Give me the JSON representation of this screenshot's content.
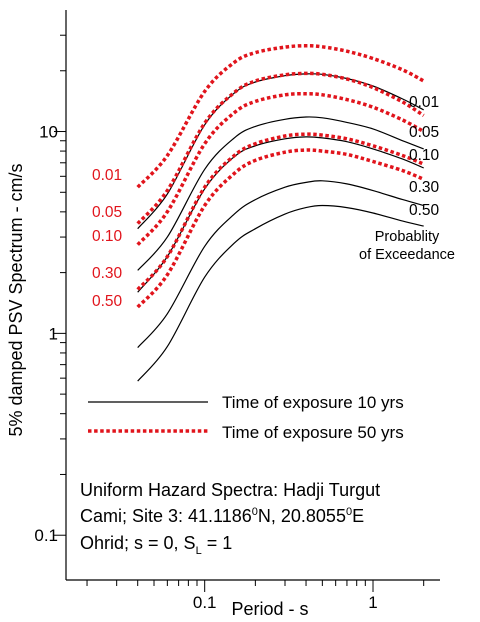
{
  "chart_data": {
    "type": "line",
    "title": "",
    "xlabel": "Period - s",
    "ylabel": "5% damped PSV Spectrum - cm/s",
    "x_scale": "log",
    "y_scale": "log",
    "xlim": [
      0.015,
      2.5
    ],
    "ylim": [
      0.06,
      40
    ],
    "x_tick_labels": [
      {
        "value": 0.1,
        "label": "0.1"
      },
      {
        "value": 1,
        "label": "1"
      }
    ],
    "y_tick_labels": [
      {
        "value": 0.1,
        "label": "0.1"
      },
      {
        "value": 1,
        "label": "1"
      },
      {
        "value": 10,
        "label": "10"
      }
    ],
    "x_minor_ticks": [
      0.02,
      0.03,
      0.04,
      0.05,
      0.06,
      0.07,
      0.08,
      0.09,
      0.2,
      0.3,
      0.4,
      0.5,
      0.6,
      0.7,
      0.8,
      0.9,
      2
    ],
    "y_minor_ticks": [
      0.2,
      0.3,
      0.4,
      0.5,
      0.6,
      0.7,
      0.8,
      0.9,
      2,
      3,
      4,
      5,
      6,
      7,
      8,
      9,
      20,
      30
    ],
    "series": [
      {
        "group": "10 yrs",
        "color": "#000000",
        "style": "solid",
        "label": "0.01",
        "x": [
          0.04,
          0.06,
          0.1,
          0.15,
          0.2,
          0.3,
          0.4,
          0.5,
          0.7,
          1.0,
          1.5,
          2.0
        ],
        "y": [
          3.3,
          4.9,
          10.8,
          15.5,
          17.6,
          18.9,
          19.3,
          19.2,
          18.3,
          16.8,
          14.5,
          12.8
        ]
      },
      {
        "group": "10 yrs",
        "color": "#000000",
        "style": "solid",
        "label": "0.05",
        "x": [
          0.04,
          0.06,
          0.1,
          0.15,
          0.2,
          0.3,
          0.4,
          0.5,
          0.7,
          1.0,
          1.5,
          2.0
        ],
        "y": [
          2.05,
          3.0,
          6.5,
          9.3,
          10.6,
          11.5,
          11.8,
          11.7,
          11.1,
          10.3,
          9.0,
          8.2
        ]
      },
      {
        "group": "10 yrs",
        "color": "#000000",
        "style": "solid",
        "label": "0.10",
        "x": [
          0.04,
          0.06,
          0.1,
          0.15,
          0.2,
          0.3,
          0.4,
          0.5,
          0.7,
          1.0,
          1.5,
          2.0
        ],
        "y": [
          1.6,
          2.4,
          5.2,
          7.5,
          8.5,
          9.2,
          9.4,
          9.3,
          8.9,
          8.2,
          7.3,
          6.6
        ]
      },
      {
        "group": "10 yrs",
        "color": "#000000",
        "style": "solid",
        "label": "0.30",
        "x": [
          0.04,
          0.06,
          0.1,
          0.15,
          0.2,
          0.3,
          0.4,
          0.5,
          0.7,
          1.0,
          1.5,
          2.0
        ],
        "y": [
          0.85,
          1.25,
          2.7,
          3.9,
          4.6,
          5.3,
          5.6,
          5.7,
          5.5,
          5.1,
          4.6,
          4.3
        ]
      },
      {
        "group": "10 yrs",
        "color": "#000000",
        "style": "solid",
        "label": "0.50",
        "x": [
          0.04,
          0.06,
          0.1,
          0.15,
          0.2,
          0.3,
          0.4,
          0.5,
          0.7,
          1.0,
          1.5,
          2.0
        ],
        "y": [
          0.58,
          0.86,
          1.9,
          2.8,
          3.3,
          3.9,
          4.2,
          4.3,
          4.2,
          3.95,
          3.6,
          3.4
        ]
      },
      {
        "group": "50 yrs",
        "color": "#e1141c",
        "style": "dotted",
        "label": "0.01",
        "x": [
          0.04,
          0.06,
          0.1,
          0.15,
          0.2,
          0.3,
          0.4,
          0.5,
          0.7,
          1.0,
          1.5,
          2.0
        ],
        "y": [
          5.3,
          7.6,
          15.8,
          22.0,
          24.6,
          26.2,
          26.6,
          26.3,
          25.0,
          23.0,
          20.2,
          17.8
        ]
      },
      {
        "group": "50 yrs",
        "color": "#e1141c",
        "style": "dotted",
        "label": "0.05",
        "x": [
          0.04,
          0.06,
          0.1,
          0.15,
          0.2,
          0.3,
          0.4,
          0.5,
          0.7,
          1.0,
          1.5,
          2.0
        ],
        "y": [
          3.5,
          5.1,
          11.0,
          15.6,
          17.8,
          19.1,
          19.4,
          19.2,
          18.2,
          16.5,
          14.0,
          12.0
        ]
      },
      {
        "group": "50 yrs",
        "color": "#e1141c",
        "style": "dotted",
        "label": "0.10",
        "x": [
          0.04,
          0.06,
          0.1,
          0.15,
          0.2,
          0.3,
          0.4,
          0.5,
          0.7,
          1.0,
          1.5,
          2.0
        ],
        "y": [
          2.75,
          4.0,
          8.7,
          12.4,
          14.1,
          15.2,
          15.4,
          15.2,
          14.4,
          13.2,
          11.4,
          10.0
        ]
      },
      {
        "group": "50 yrs",
        "color": "#e1141c",
        "style": "dotted",
        "label": "0.30",
        "x": [
          0.04,
          0.06,
          0.1,
          0.15,
          0.2,
          0.3,
          0.4,
          0.5,
          0.7,
          1.0,
          1.5,
          2.0
        ],
        "y": [
          1.65,
          2.4,
          5.3,
          7.6,
          8.7,
          9.5,
          9.7,
          9.6,
          9.2,
          8.5,
          7.6,
          6.9
        ]
      },
      {
        "group": "50 yrs",
        "color": "#e1141c",
        "style": "dotted",
        "label": "0.50",
        "x": [
          0.04,
          0.06,
          0.1,
          0.15,
          0.2,
          0.3,
          0.4,
          0.5,
          0.7,
          1.0,
          1.5,
          2.0
        ],
        "y": [
          1.35,
          1.95,
          4.3,
          6.2,
          7.2,
          7.9,
          8.1,
          8.0,
          7.7,
          7.1,
          6.4,
          5.8
        ]
      }
    ],
    "right_labels": [
      "0.01",
      "0.05",
      "0.10",
      "0.30",
      "0.50"
    ],
    "left_labels": [
      "0.01",
      "0.05",
      "0.10",
      "0.30",
      "0.50"
    ],
    "annotation_line1": "Probablity",
    "annotation_line2": "of Exceedance",
    "legend": [
      {
        "text": "Time of exposure 10 yrs",
        "color": "#000000",
        "style": "solid"
      },
      {
        "text": "Time of exposure 50 yrs",
        "color": "#e1141c",
        "style": "dotted"
      }
    ],
    "legend_position": "lower-right",
    "caption_line1": "Uniform Hazard Spectra: Hadji Turgut",
    "caption_line2_pre": "Cami; Site 3: 41.1186",
    "caption_line2_sup1": "0",
    "caption_line2_mid": "N, 20.8055",
    "caption_line2_sup2": "0",
    "caption_line2_post": "E",
    "caption_line3_pre": "Ohrid; s = 0, S",
    "caption_line3_sub": "L",
    "caption_line3_post": " = 1",
    "grid": false
  }
}
